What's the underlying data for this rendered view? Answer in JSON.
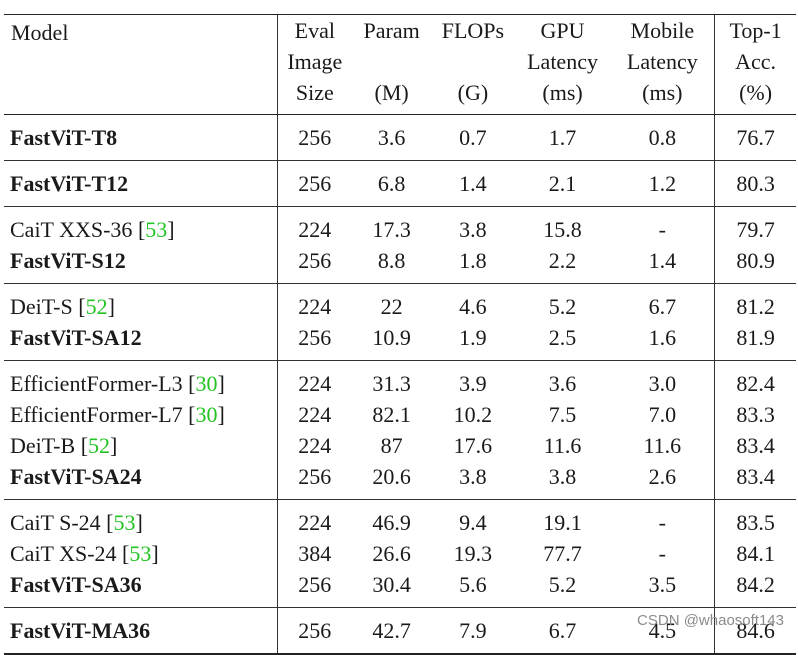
{
  "header": {
    "model": "Model",
    "eval": [
      "Eval",
      "Image",
      "Size"
    ],
    "param": [
      "Param",
      "",
      "(M)"
    ],
    "flops": [
      "FLOPs",
      "",
      "(G)"
    ],
    "gpu": [
      "GPU",
      "Latency",
      "(ms)"
    ],
    "mobile": [
      "Mobile",
      "Latency",
      "(ms)"
    ],
    "top1": [
      "Top-1",
      "Acc.",
      "(%)"
    ]
  },
  "groups": [
    {
      "rows": [
        {
          "name": "FastViT-T8",
          "ref": "",
          "bold_name": true,
          "size": "256",
          "param": "3.6",
          "flops": "0.7",
          "gpu": "1.7",
          "gpu_bold": false,
          "mobile": "0.8",
          "mobile_bold": true,
          "top1": "76.7",
          "top1_bold": true
        }
      ]
    },
    {
      "rows": [
        {
          "name": "FastViT-T12",
          "ref": "",
          "bold_name": true,
          "size": "256",
          "param": "6.8",
          "flops": "1.4",
          "gpu": "2.1",
          "gpu_bold": false,
          "mobile": "1.2",
          "mobile_bold": true,
          "top1": "80.3",
          "top1_bold": true
        }
      ]
    },
    {
      "rows": [
        {
          "name": "CaiT XXS-36",
          "ref": "53",
          "bold_name": false,
          "size": "224",
          "param": "17.3",
          "flops": "3.8",
          "gpu": "15.8",
          "gpu_bold": false,
          "mobile": "-",
          "mobile_bold": false,
          "top1": "79.7",
          "top1_bold": false
        },
        {
          "name": "FastViT-S12",
          "ref": "",
          "bold_name": true,
          "size": "256",
          "param": "8.8",
          "flops": "1.8",
          "gpu": "2.2",
          "gpu_bold": true,
          "mobile": "1.4",
          "mobile_bold": true,
          "top1": "80.9",
          "top1_bold": true
        }
      ]
    },
    {
      "rows": [
        {
          "name": "DeiT-S",
          "ref": "52",
          "bold_name": false,
          "size": "224",
          "param": "22",
          "flops": "4.6",
          "gpu": "5.2",
          "gpu_bold": false,
          "mobile": "6.7",
          "mobile_bold": false,
          "top1": "81.2",
          "top1_bold": false
        },
        {
          "name": "FastViT-SA12",
          "ref": "",
          "bold_name": true,
          "size": "256",
          "param": "10.9",
          "flops": "1.9",
          "gpu": "2.5",
          "gpu_bold": true,
          "mobile": "1.6",
          "mobile_bold": true,
          "top1": "81.9",
          "top1_bold": true
        }
      ]
    },
    {
      "rows": [
        {
          "name": "EfficientFormer-L3",
          "ref": "30",
          "bold_name": false,
          "size": "224",
          "param": "31.3",
          "flops": "3.9",
          "gpu": "3.6",
          "gpu_bold": true,
          "mobile": "3.0",
          "mobile_bold": false,
          "top1": "82.4",
          "top1_bold": false
        },
        {
          "name": "EfficientFormer-L7",
          "ref": "30",
          "bold_name": false,
          "size": "224",
          "param": "82.1",
          "flops": "10.2",
          "gpu": "7.5",
          "gpu_bold": false,
          "mobile": "7.0",
          "mobile_bold": false,
          "top1": "83.3",
          "top1_bold": false
        },
        {
          "name": "DeiT-B",
          "ref": "52",
          "bold_name": false,
          "size": "224",
          "param": "87",
          "flops": "17.6",
          "gpu": "11.6",
          "gpu_bold": false,
          "mobile": "11.6",
          "mobile_bold": false,
          "top1": "83.4",
          "top1_bold": true
        },
        {
          "name": "FastViT-SA24",
          "ref": "",
          "bold_name": true,
          "size": "256",
          "param": "20.6",
          "flops": "3.8",
          "gpu": "3.8",
          "gpu_bold": false,
          "mobile": "2.6",
          "mobile_bold": true,
          "top1": "83.4",
          "top1_bold": true
        }
      ]
    },
    {
      "rows": [
        {
          "name": "CaiT S-24",
          "ref": "53",
          "bold_name": false,
          "size": "224",
          "param": "46.9",
          "flops": "9.4",
          "gpu": "19.1",
          "gpu_bold": false,
          "mobile": "-",
          "mobile_bold": false,
          "top1": "83.5",
          "top1_bold": false
        },
        {
          "name": "CaiT XS-24",
          "ref": "53",
          "bold_name": false,
          "size": "384",
          "param": "26.6",
          "flops": "19.3",
          "gpu": "77.7",
          "gpu_bold": false,
          "mobile": "-",
          "mobile_bold": false,
          "top1": "84.1",
          "top1_bold": false
        },
        {
          "name": "FastViT-SA36",
          "ref": "",
          "bold_name": true,
          "size": "256",
          "param": "30.4",
          "flops": "5.6",
          "gpu": "5.2",
          "gpu_bold": true,
          "mobile": "3.5",
          "mobile_bold": true,
          "top1": "84.2",
          "top1_bold": true
        }
      ]
    },
    {
      "rows": [
        {
          "name": "FastViT-MA36",
          "ref": "",
          "bold_name": true,
          "size": "256",
          "param": "42.7",
          "flops": "7.9",
          "gpu": "6.7",
          "gpu_bold": true,
          "mobile": "4.5",
          "mobile_bold": true,
          "top1": "84.6",
          "top1_bold": true
        }
      ]
    }
  ],
  "watermark": "CSDN @whaosoft143",
  "colors": {
    "ref_link": "#22c322",
    "rule": "#222222",
    "watermark": "#8a8a8a"
  }
}
